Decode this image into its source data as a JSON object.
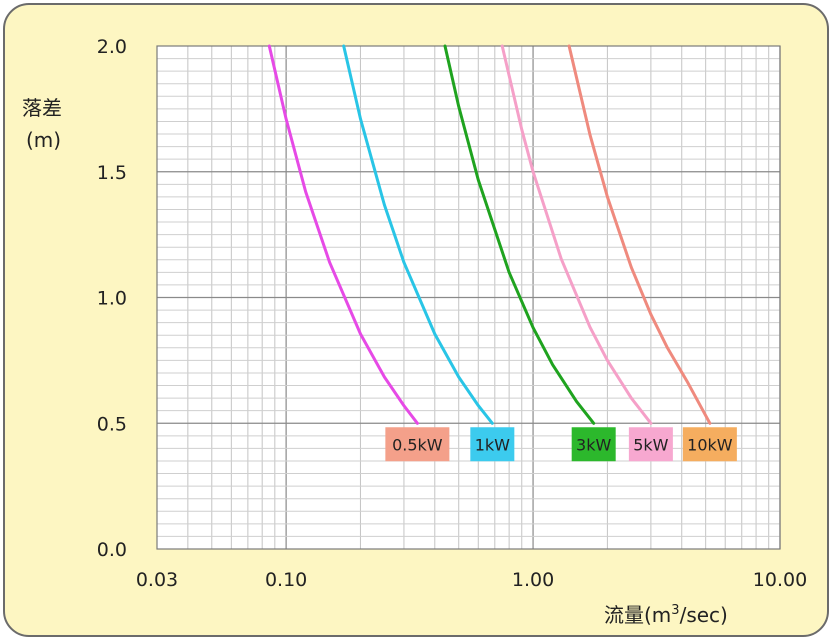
{
  "chart_data": {
    "type": "line",
    "ylabel": "落差",
    "ylabel_unit": "(m)",
    "xlabel_prefix": "流量(m",
    "xlabel_sup": "3",
    "xlabel_suffix": "/sec)",
    "x_scale": "log",
    "xlim": [
      0.03,
      10.0
    ],
    "ylim": [
      0.0,
      2.0
    ],
    "x_ticks": [
      "0.03",
      "0.10",
      "1.00",
      "10.00"
    ],
    "x_tick_values": [
      0.03,
      0.1,
      1.0,
      10.0
    ],
    "y_ticks": [
      "0.0",
      "0.5",
      "1.0",
      "1.5",
      "2.0"
    ],
    "y_tick_values": [
      0.0,
      0.5,
      1.0,
      1.5,
      2.0
    ],
    "grid": true,
    "series": [
      {
        "name": "0.5kW",
        "color": "#e64ae6",
        "label_bg": "#f4a08a",
        "x": [
          0.0855,
          0.1,
          0.12,
          0.15,
          0.2,
          0.25,
          0.3,
          0.34
        ],
        "y": [
          2.0,
          1.71,
          1.42,
          1.14,
          0.855,
          0.684,
          0.57,
          0.5
        ]
      },
      {
        "name": "1kW",
        "color": "#29c5e6",
        "label_bg": "#3ccbee",
        "x": [
          0.171,
          0.2,
          0.25,
          0.3,
          0.4,
          0.5,
          0.6,
          0.684
        ],
        "y": [
          2.0,
          1.71,
          1.368,
          1.14,
          0.855,
          0.684,
          0.57,
          0.5
        ]
      },
      {
        "name": "3kW",
        "color": "#1fa31f",
        "label_bg": "#2cb82c",
        "x": [
          0.44,
          0.5,
          0.6,
          0.8,
          1.0,
          1.2,
          1.5,
          1.76
        ],
        "y": [
          2.0,
          1.76,
          1.467,
          1.1,
          0.88,
          0.733,
          0.587,
          0.5
        ]
      },
      {
        "name": "5kW",
        "color": "#f5a0c8",
        "label_bg": "#f7a8d0",
        "x": [
          0.75,
          0.9,
          1.0,
          1.3,
          1.7,
          2.0,
          2.5,
          3.0
        ],
        "y": [
          2.0,
          1.667,
          1.5,
          1.154,
          0.882,
          0.75,
          0.6,
          0.5
        ]
      },
      {
        "name": "10kW",
        "color": "#ef8a7e",
        "label_bg": "#f5ad5f",
        "x": [
          1.4,
          1.7,
          2.0,
          2.5,
          3.0,
          3.5,
          4.2,
          5.2
        ],
        "y": [
          2.0,
          1.647,
          1.4,
          1.12,
          0.933,
          0.8,
          0.667,
          0.5
        ]
      }
    ]
  }
}
